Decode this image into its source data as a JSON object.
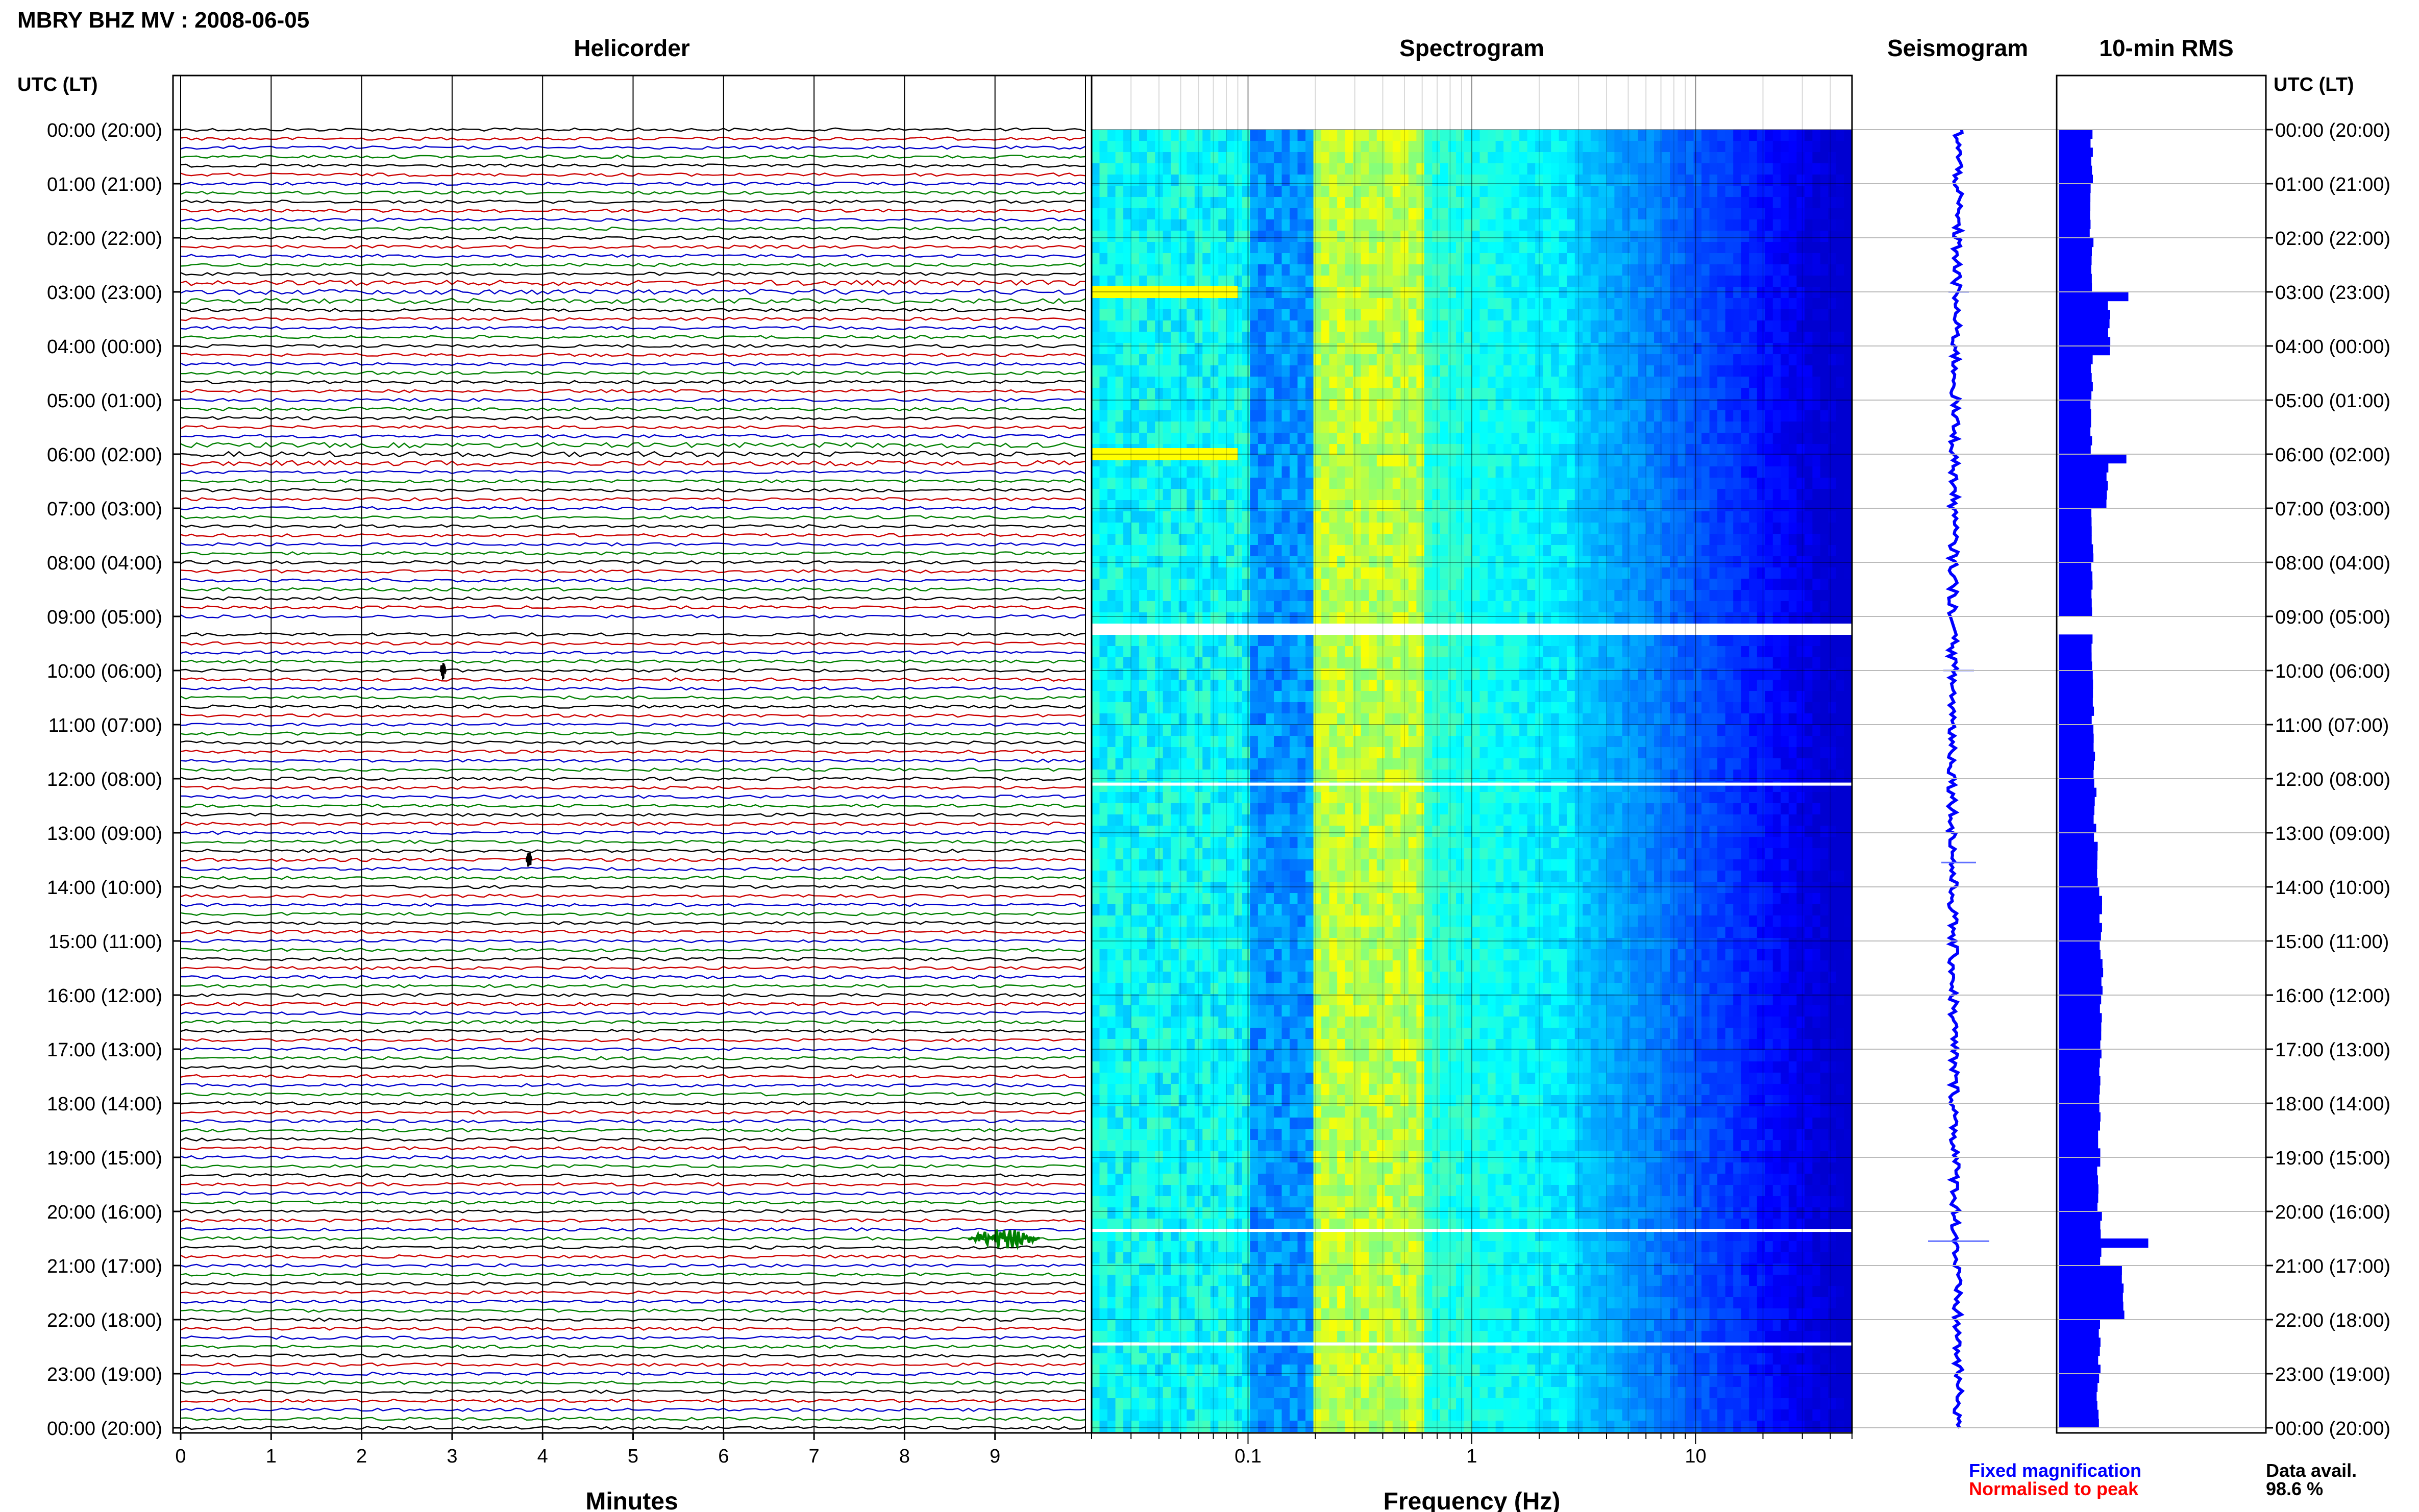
{
  "header": {
    "station_title": "MBRY BHZ MV : 2008-06-05",
    "panel_titles": {
      "helicorder": "Helicorder",
      "spectrogram": "Spectrogram",
      "seismogram": "Seismogram",
      "rms": "10-min RMS"
    },
    "time_axis_label": "UTC (LT)"
  },
  "footer": {
    "minutes_label": "Minutes",
    "frequency_label": "Frequency (Hz)",
    "legend_fixed": "Fixed magnification",
    "legend_normalised": "Normalised to peak",
    "data_avail_label": "Data avail.",
    "data_avail_value": "98.6 %"
  },
  "colors": {
    "trace_cycle": [
      "#000000",
      "#cc0000",
      "#0000cc",
      "#008000"
    ],
    "fixed_magnification": "#0000ff",
    "normalised_to_peak": "#ff0000",
    "rms_bar": "#0000ff"
  },
  "chart_data": [
    {
      "type": "line",
      "panel": "helicorder",
      "title": "Helicorder",
      "xlabel": "Minutes",
      "xlim": [
        0,
        10
      ],
      "x_ticks": [
        "0",
        "1",
        "2",
        "3",
        "4",
        "5",
        "6",
        "7",
        "8",
        "9"
      ],
      "rows_per_hour": 6,
      "row_minutes": 10,
      "gap_hours_utc": [
        9,
        9.33
      ],
      "events": [
        {
          "time_utc": "20:30",
          "minute": 9.1,
          "amplitude": "large"
        },
        {
          "time_utc": "10:00",
          "minute": 2.9,
          "amplitude": "small"
        },
        {
          "time_utc": "13:30",
          "minute": 3.85,
          "amplitude": "small"
        }
      ]
    },
    {
      "type": "heatmap",
      "panel": "spectrogram",
      "title": "Spectrogram",
      "xlabel": "Frequency (Hz)",
      "x_scale": "log",
      "xlim": [
        0.02,
        50
      ],
      "x_ticks": [
        "0.1",
        "1",
        "10"
      ],
      "colormap": "jet",
      "peak_band_hz": [
        0.2,
        0.6
      ],
      "high_energy_bands": [
        {
          "time_utc": "03:00",
          "freq_hz": [
            0.02,
            0.09
          ]
        },
        {
          "time_utc": "06:00",
          "freq_hz": [
            0.02,
            0.09
          ]
        }
      ]
    },
    {
      "type": "line",
      "panel": "seismogram",
      "title": "Seismogram",
      "orientation": "vertical"
    },
    {
      "type": "bar",
      "panel": "rms",
      "title": "10-min RMS",
      "orientation": "horizontal",
      "bin_minutes": 10,
      "hourly_relative_rms": [
        0.45,
        0.44,
        0.46,
        0.7,
        0.46,
        0.45,
        0.68,
        0.46,
        0.46,
        0.47,
        0.47,
        0.48,
        0.5,
        0.54,
        0.58,
        0.6,
        0.58,
        0.56,
        0.56,
        0.55,
        0.58,
        0.9,
        0.56,
        0.54
      ],
      "peaks": [
        {
          "time_utc": "03:00",
          "value": 0.7
        },
        {
          "time_utc": "06:00",
          "value": 0.68
        },
        {
          "time_utc": "20:30",
          "value": 0.9
        }
      ]
    },
    {
      "type": "table",
      "panel": "time_axis",
      "ylabel": "UTC (LT)",
      "utc_lt_labels": [
        "00:00 (20:00)",
        "01:00 (21:00)",
        "02:00 (22:00)",
        "03:00 (23:00)",
        "04:00 (00:00)",
        "05:00 (01:00)",
        "06:00 (02:00)",
        "07:00 (03:00)",
        "08:00 (04:00)",
        "09:00 (05:00)",
        "10:00 (06:00)",
        "11:00 (07:00)",
        "12:00 (08:00)",
        "13:00 (09:00)",
        "14:00 (10:00)",
        "15:00 (11:00)",
        "16:00 (12:00)",
        "17:00 (13:00)",
        "18:00 (14:00)",
        "19:00 (15:00)",
        "20:00 (16:00)",
        "21:00 (17:00)",
        "22:00 (18:00)",
        "23:00 (19:00)",
        "00:00 (20:00)"
      ]
    }
  ]
}
